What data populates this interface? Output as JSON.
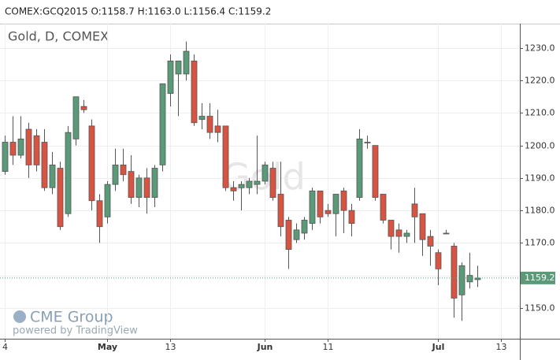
{
  "chart_data": {
    "type": "candlestick",
    "header": "COMEX:GCQ2015 O:1158.7 H:1163.0 L:1156.4 C:1159.2",
    "title": "Gold, D, COMEX",
    "watermark": "Gold",
    "logo": "CME Group",
    "logo_sub": "powered by TradingView",
    "up_color": "#5b9a78",
    "down_color": "#d75442",
    "last_price": 1159.2,
    "last_price_color": "#5b9a78",
    "grid": true,
    "xlim": [
      -0.6,
      65.4
    ],
    "ylim": [
      1140.5,
      1237.5
    ],
    "xticks": [
      {
        "value": 0,
        "label": "4"
      },
      {
        "value": 13,
        "label": "May"
      },
      {
        "value": 21,
        "label": "13"
      },
      {
        "value": 33,
        "label": "Jun"
      },
      {
        "value": 41,
        "label": "11"
      },
      {
        "value": 55,
        "label": "Jul"
      },
      {
        "value": 63,
        "label": "13"
      }
    ],
    "yticks": [
      {
        "value": 1150,
        "label": "1150.0"
      },
      {
        "value": 1160,
        "label": "1160.0"
      },
      {
        "value": 1170,
        "label": "1170.0"
      },
      {
        "value": 1180,
        "label": "1180.0"
      },
      {
        "value": 1190,
        "label": "1190.0"
      },
      {
        "value": 1200,
        "label": "1200.0"
      },
      {
        "value": 1210,
        "label": "1210.0"
      },
      {
        "value": 1220,
        "label": "1220.0"
      },
      {
        "value": 1230,
        "label": "1230.0"
      }
    ],
    "open": [
      1192,
      1201,
      1197,
      1205,
      1203,
      1201,
      1187,
      1193,
      1179,
      1202,
      1212,
      1206,
      1183,
      1178,
      1188,
      1194,
      1192,
      1184,
      1190,
      1184,
      1194,
      1216,
      1222,
      1222,
      1226,
      1208,
      1209,
      1206,
      1206,
      1187,
      1187,
      1187,
      1188,
      1189,
      1193,
      1185,
      1177,
      1171,
      1173,
      1176,
      1186,
      1180,
      1179,
      1186,
      1180,
      1184,
      1201,
      1200,
      1185,
      1177,
      1174,
      1172,
      1182,
      1179,
      1172,
      1167,
      1173,
      1169,
      1154,
      1158,
      1158.7
    ],
    "high": [
      1203,
      1209,
      1209,
      1207,
      1205,
      1205,
      1198,
      1195,
      1206,
      1215,
      1214,
      1208,
      1185,
      1189,
      1199,
      1199,
      1197,
      1191,
      1193,
      1194,
      1219,
      1228,
      1226,
      1232,
      1228,
      1213,
      1213,
      1211,
      1206,
      1189,
      1189,
      1190,
      1203,
      1195,
      1195,
      1195,
      1178,
      1176,
      1178,
      1187,
      1186,
      1182,
      1185,
      1187,
      1182,
      1205,
      1203,
      1200,
      1185,
      1177,
      1176,
      1174,
      1187,
      1179,
      1174,
      1168,
      1174,
      1170,
      1164,
      1167,
      1163.0
    ],
    "low": [
      1191,
      1194,
      1196,
      1190,
      1192,
      1186,
      1185,
      1174,
      1178,
      1200,
      1210,
      1180,
      1170,
      1176,
      1186,
      1189,
      1182,
      1181,
      1179,
      1181,
      1192,
      1212,
      1209,
      1220,
      1206,
      1205,
      1202,
      1201,
      1186,
      1183,
      1180,
      1185,
      1185,
      1188,
      1183,
      1172,
      1162,
      1170,
      1171,
      1174,
      1176,
      1178,
      1172,
      1173,
      1172,
      1183,
      1199,
      1183,
      1176,
      1168,
      1167,
      1170,
      1170,
      1166,
      1163,
      1157,
      1173,
      1147,
      1146,
      1156,
      1156.4
    ],
    "close": [
      1201,
      1197,
      1202,
      1194,
      1194,
      1187,
      1194,
      1175,
      1204,
      1215,
      1211,
      1183,
      1175,
      1188,
      1194,
      1191,
      1184,
      1190,
      1184,
      1193,
      1219,
      1226,
      1226,
      1229,
      1207,
      1209,
      1204,
      1204,
      1187,
      1186,
      1188,
      1189,
      1189,
      1194,
      1184,
      1175,
      1168,
      1174,
      1177,
      1186,
      1178,
      1179,
      1185,
      1180,
      1176,
      1202,
      1201,
      1184,
      1177,
      1172,
      1172,
      1173,
      1178,
      1171,
      1169,
      1162,
      1173,
      1153,
      1163,
      1160,
      1159.2
    ]
  }
}
